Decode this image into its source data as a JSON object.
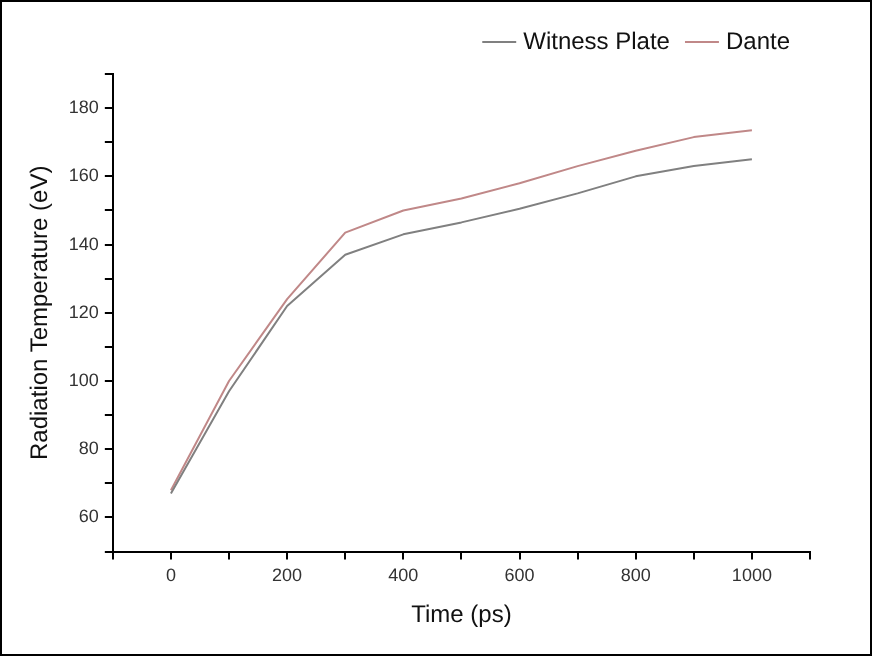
{
  "chart_data": {
    "type": "line",
    "xlabel": "Time (ps)",
    "ylabel": "Radiation Temperature (eV)",
    "x": [
      0,
      100,
      200,
      300,
      400,
      500,
      600,
      700,
      800,
      900,
      1000
    ],
    "series": [
      {
        "name": "Witness Plate",
        "color": "#808080",
        "values": [
          67,
          97,
          122,
          137,
          143,
          146.5,
          150.5,
          155,
          160,
          163,
          165
        ]
      },
      {
        "name": "Dante",
        "color": "#c08888",
        "values": [
          68,
          100,
          124,
          143.5,
          150,
          153.5,
          158,
          163,
          167.5,
          171.5,
          173.5
        ]
      }
    ],
    "xlim": [
      -100,
      1100
    ],
    "xticks": [
      {
        "value": -100,
        "label": null
      },
      0,
      {
        "value": 100,
        "label": null
      },
      200,
      {
        "value": 300,
        "label": null
      },
      400,
      {
        "value": 500,
        "label": null
      },
      600,
      {
        "value": 700,
        "label": null
      },
      800,
      {
        "value": 900,
        "label": null
      },
      1000,
      {
        "value": 1100,
        "label": null
      }
    ],
    "ylim": [
      50,
      190
    ],
    "yticks": [
      {
        "value": 50,
        "label": null
      },
      60,
      {
        "value": 70,
        "label": null
      },
      80,
      {
        "value": 90,
        "label": null
      },
      100,
      {
        "value": 110,
        "label": null
      },
      120,
      {
        "value": 130,
        "label": null
      },
      140,
      {
        "value": 150,
        "label": null
      },
      160,
      {
        "value": 170,
        "label": null
      },
      180,
      {
        "value": 190,
        "label": null
      }
    ],
    "grid": false,
    "legend": "top right",
    "marker": "none",
    "line_style": "solid"
  }
}
